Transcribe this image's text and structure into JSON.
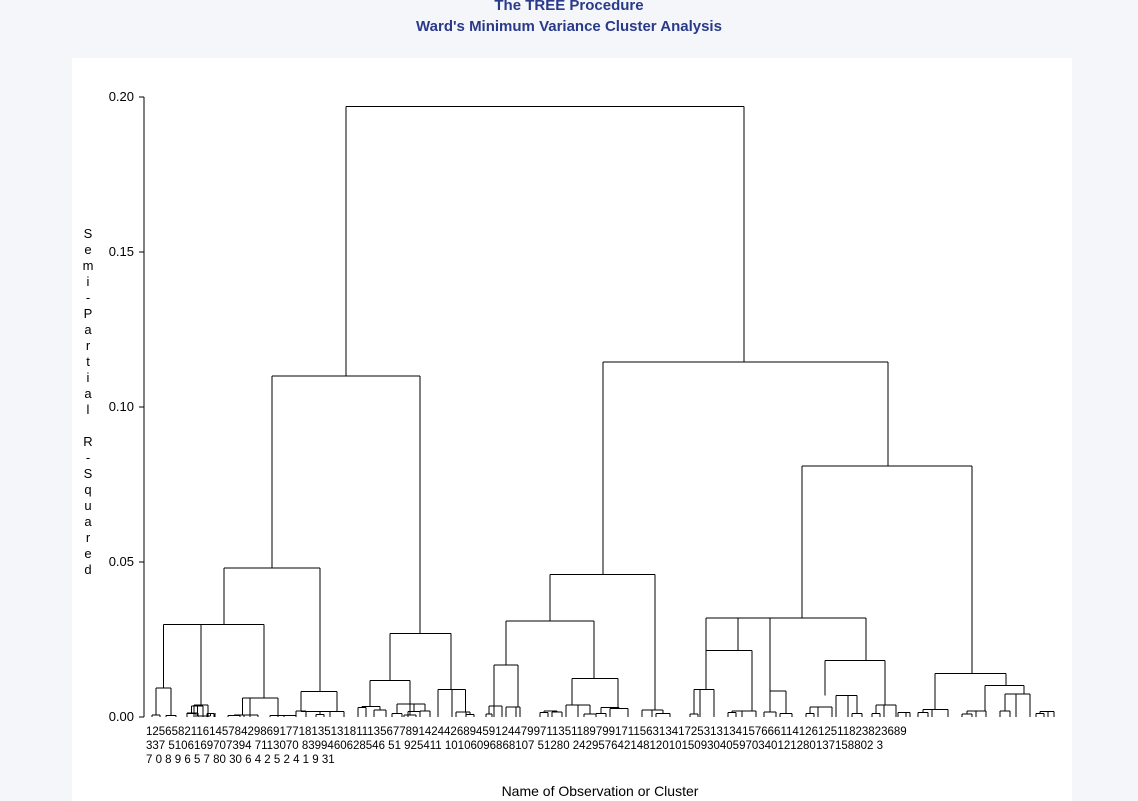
{
  "titles": {
    "line1": "The TREE Procedure",
    "line2": "Ward's Minimum Variance Cluster Analysis"
  },
  "chart_data": {
    "type": "dendrogram",
    "ylabel": "Semi-Partial R-Squared",
    "xlabel": "Name of Observation or Cluster",
    "ylim": [
      0,
      0.2
    ],
    "yticks": [
      "0.00",
      "0.05",
      "0.10",
      "0.15",
      "0.20"
    ],
    "leaf_label_rows": [
      "1256582116145784298691771813513181113567789142442689459124479971135118979917115631341725313134157666114126125118238236​89",
      "337 5106169707394 7113070 8399460628546 51 925411 10106096868107 51280 24295764214812010150930405970340121280137158802 3",
      "7 0 8 9 6 5 7 80 30 6 4 2 5 2 4 1 9 31"
    ],
    "merges": [
      {
        "name": "root",
        "height": 0.197
      },
      {
        "name": "left-major",
        "height": 0.11
      },
      {
        "name": "right-major",
        "height": 0.1145
      },
      {
        "name": "left-a",
        "height": 0.048
      },
      {
        "name": "left-b",
        "height": 0.027
      },
      {
        "name": "mid-group",
        "height": 0.046
      },
      {
        "name": "right-group",
        "height": 0.081
      },
      {
        "name": "right-a",
        "height": 0.032
      },
      {
        "name": "right-b",
        "height": 0.014
      }
    ]
  }
}
